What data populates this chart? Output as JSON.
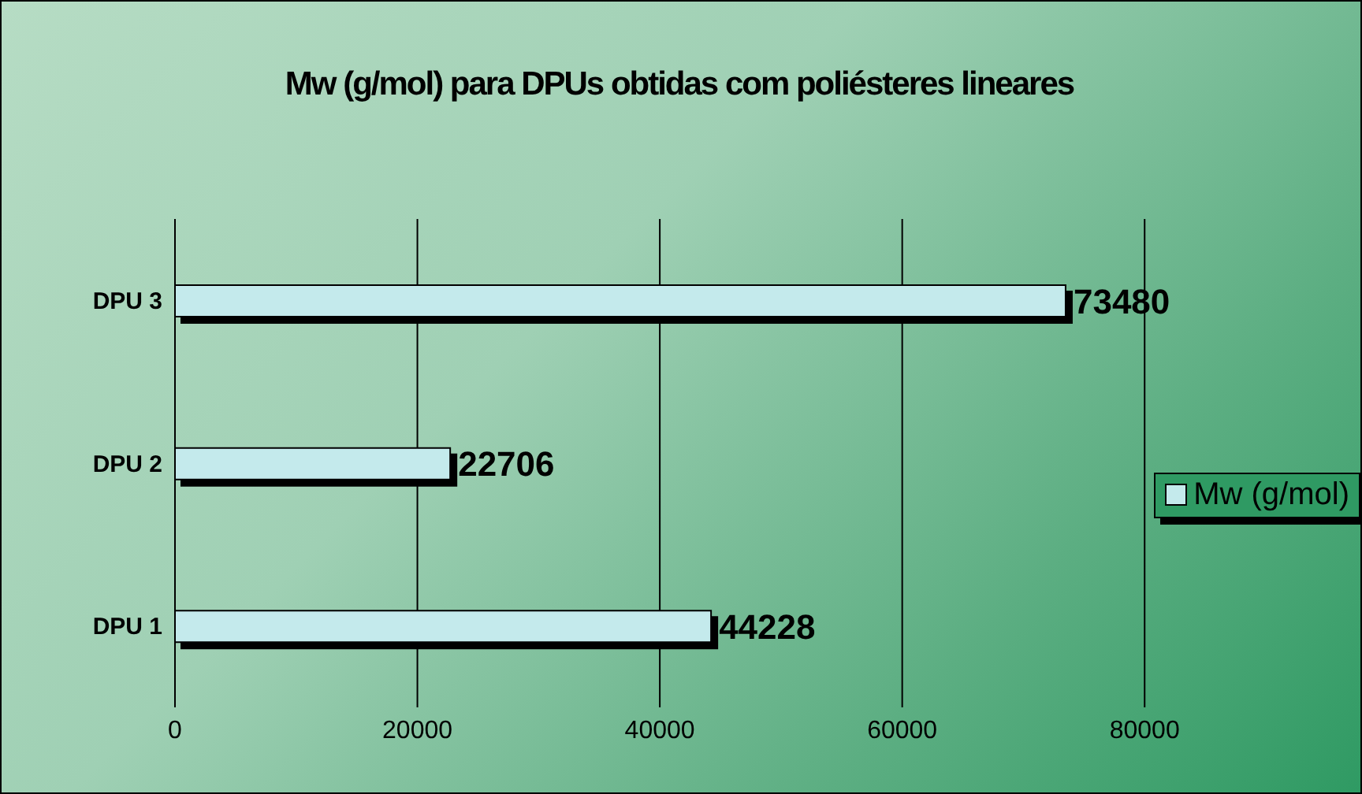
{
  "chart_data": {
    "type": "bar",
    "orientation": "horizontal",
    "title": "Mw (g/mol) para DPUs obtidas com poliésteres lineares",
    "categories": [
      "DPU 3",
      "DPU 2",
      "DPU 1"
    ],
    "series": [
      {
        "name": "Mw (g/mol)",
        "color": "#c4eaec",
        "values": [
          73480,
          22706,
          44228
        ]
      }
    ],
    "xlim": [
      0,
      80000
    ],
    "xticks": [
      0,
      20000,
      40000,
      60000,
      80000
    ],
    "grid": "x",
    "legend": "right",
    "data_labels": true
  }
}
